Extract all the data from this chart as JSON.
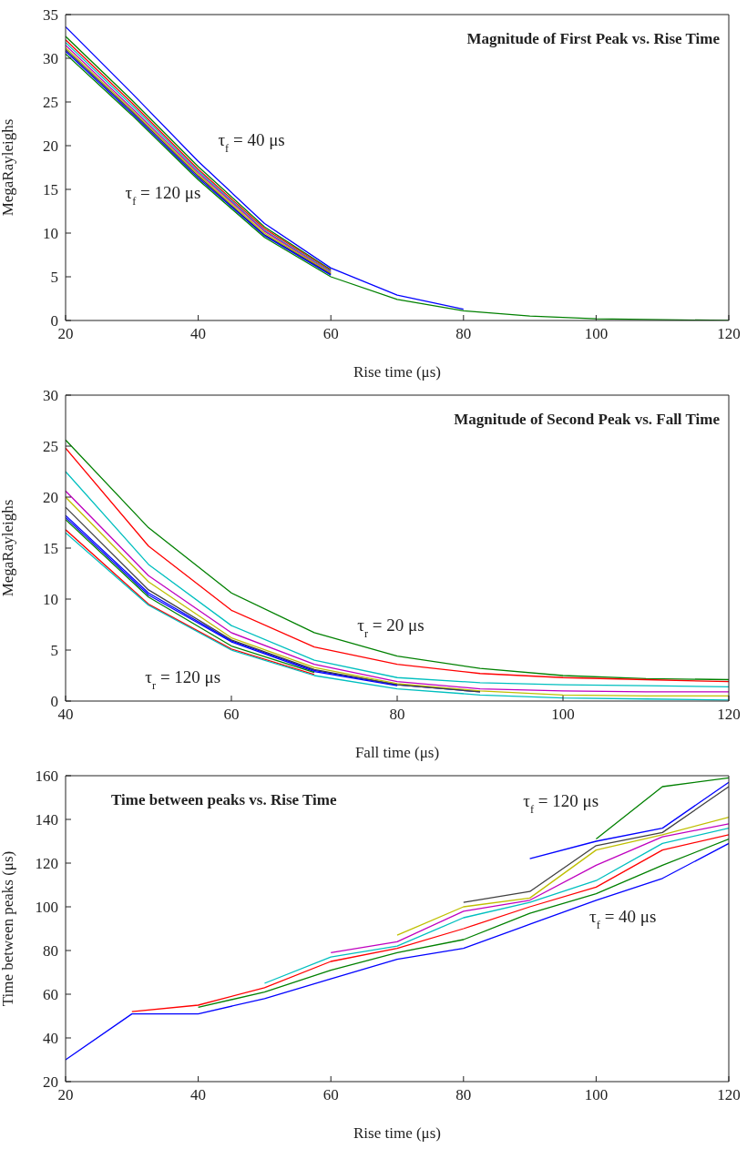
{
  "chart_data": [
    {
      "type": "line",
      "title": "Magnitude of First Peak vs. Rise Time",
      "xlabel": "Rise time (μs)",
      "ylabel": "MegaRayleighs",
      "x": [
        20,
        30,
        40,
        50,
        60,
        70,
        80,
        90,
        100,
        110,
        120
      ],
      "xlim": [
        20,
        120
      ],
      "xticks": [
        20,
        40,
        60,
        80,
        100,
        120
      ],
      "ylim": [
        0,
        35
      ],
      "yticks": [
        0,
        5,
        10,
        15,
        20,
        25,
        30,
        35
      ],
      "annotations": [
        "τ$_{f}$ = 40 μs",
        "τ$_{f}$ = 120 μs"
      ],
      "series": [
        {
          "color": "#0000ff",
          "values": [
            33.6,
            26.0,
            18.2,
            11.1,
            6.0,
            2.9,
            1.3,
            null,
            null,
            null,
            null
          ]
        },
        {
          "color": "#008000",
          "values": [
            32.5,
            25.2,
            17.6,
            10.7,
            5.8,
            null,
            null,
            null,
            null,
            null,
            null
          ]
        },
        {
          "color": "#ff0000",
          "values": [
            32.1,
            24.9,
            17.3,
            10.5,
            5.7,
            null,
            null,
            null,
            null,
            null,
            null
          ]
        },
        {
          "color": "#00bfbf",
          "values": [
            31.8,
            24.6,
            17.1,
            10.3,
            5.6,
            null,
            null,
            null,
            null,
            null,
            null
          ]
        },
        {
          "color": "#bf00bf",
          "values": [
            31.5,
            24.3,
            16.9,
            10.2,
            5.5,
            null,
            null,
            null,
            null,
            null,
            null
          ]
        },
        {
          "color": "#bfbf00",
          "values": [
            31.2,
            24.1,
            16.7,
            10.0,
            5.4,
            null,
            null,
            null,
            null,
            null,
            null
          ]
        },
        {
          "color": "#404040",
          "values": [
            31.0,
            23.9,
            16.5,
            9.8,
            5.3,
            null,
            null,
            null,
            null,
            null,
            null
          ]
        },
        {
          "color": "#0000ff",
          "values": [
            30.8,
            23.7,
            16.3,
            9.7,
            5.2,
            null,
            null,
            null,
            null,
            null,
            null
          ]
        },
        {
          "color": "#008000",
          "values": [
            30.5,
            23.5,
            16.1,
            9.5,
            5.0,
            2.4,
            1.1,
            0.5,
            0.2,
            0.1,
            0.0
          ]
        }
      ]
    },
    {
      "type": "line",
      "title": "Magnitude of Second Peak vs. Fall Time",
      "xlabel": "Fall time (μs)",
      "ylabel": "MegaRayleighs",
      "x": [
        40,
        50,
        60,
        70,
        80,
        90,
        100,
        110,
        120
      ],
      "xlim": [
        40,
        120
      ],
      "xticks": [
        40,
        60,
        80,
        100,
        120
      ],
      "ylim": [
        0,
        30
      ],
      "yticks": [
        0,
        5,
        10,
        15,
        20,
        25,
        30
      ],
      "annotations": [
        "τ$_{r}$ = 20 μs",
        "τ$_{r}$ = 120 μs"
      ],
      "series": [
        {
          "color": "#0000ff",
          "values": [
            18.2,
            10.6,
            5.9,
            3.0,
            1.6,
            0.9,
            null,
            null,
            null
          ]
        },
        {
          "color": "#008000",
          "values": [
            25.6,
            17.0,
            10.6,
            6.7,
            4.4,
            3.2,
            2.5,
            2.2,
            2.1
          ]
        },
        {
          "color": "#ff0000",
          "values": [
            24.8,
            15.2,
            8.9,
            5.3,
            3.6,
            2.7,
            2.3,
            2.1,
            1.9
          ]
        },
        {
          "color": "#00bfbf",
          "values": [
            22.5,
            13.4,
            7.4,
            4.0,
            2.3,
            1.8,
            1.6,
            1.5,
            1.4
          ]
        },
        {
          "color": "#bf00bf",
          "values": [
            20.6,
            12.3,
            6.7,
            3.6,
            1.9,
            1.2,
            1.0,
            0.9,
            0.9
          ]
        },
        {
          "color": "#bfbf00",
          "values": [
            20.0,
            11.7,
            6.2,
            3.3,
            1.7,
            1.0,
            0.6,
            0.5,
            0.5
          ]
        },
        {
          "color": "#404040",
          "values": [
            19.0,
            10.9,
            6.0,
            3.1,
            1.6,
            0.9,
            null,
            null,
            null
          ]
        },
        {
          "color": "#0000ff",
          "values": [
            18.0,
            10.4,
            5.8,
            2.9,
            1.5,
            null,
            null,
            null,
            null
          ]
        },
        {
          "color": "#008000",
          "values": [
            17.8,
            10.2,
            5.4,
            2.8,
            null,
            null,
            null,
            null,
            null
          ]
        },
        {
          "color": "#ff0000",
          "values": [
            16.8,
            9.5,
            5.1,
            2.6,
            null,
            null,
            null,
            null,
            null
          ]
        },
        {
          "color": "#00bfbf",
          "values": [
            16.5,
            9.4,
            5.0,
            2.5,
            1.2,
            0.6,
            0.3,
            0.2,
            0.1
          ]
        }
      ]
    },
    {
      "type": "line",
      "title": "Time between peaks vs. Rise Time",
      "xlabel": "Rise time (μs)",
      "ylabel": "Time between peaks (μs)",
      "xlim": [
        20,
        120
      ],
      "xticks": [
        20,
        40,
        60,
        80,
        100,
        120
      ],
      "ylim": [
        20,
        160
      ],
      "yticks": [
        20,
        40,
        60,
        80,
        100,
        120,
        140,
        160
      ],
      "annotations": [
        "τ$_{f}$ = 120 μs",
        "τ$_{f}$ = 40 μs"
      ],
      "series": [
        {
          "color": "#0000ff",
          "x": [
            20,
            30,
            40,
            50,
            60,
            70,
            80,
            90,
            100,
            110,
            120
          ],
          "values": [
            30,
            51,
            51,
            58,
            67,
            76,
            81,
            92,
            103,
            113,
            129
          ]
        },
        {
          "color": "#008000",
          "x": [
            40,
            50,
            60,
            70,
            80,
            90,
            100,
            110,
            120
          ],
          "values": [
            54,
            61,
            71,
            79,
            85,
            97,
            106,
            119,
            131
          ]
        },
        {
          "color": "#ff0000",
          "x": [
            30,
            40,
            50,
            60,
            70,
            80,
            90,
            100,
            110,
            120
          ],
          "values": [
            52,
            55,
            63,
            75,
            81,
            90,
            100,
            109,
            126,
            133
          ]
        },
        {
          "color": "#00bfbf",
          "x": [
            50,
            60,
            70,
            80,
            90,
            100,
            110,
            120
          ],
          "values": [
            65,
            77,
            82,
            95,
            102,
            112,
            129,
            136
          ]
        },
        {
          "color": "#bf00bf",
          "x": [
            60,
            70,
            80,
            90,
            100,
            110,
            120
          ],
          "values": [
            79,
            84,
            98,
            103,
            119,
            132,
            138
          ]
        },
        {
          "color": "#bfbf00",
          "x": [
            70,
            80,
            90,
            100,
            110,
            120
          ],
          "values": [
            87,
            100,
            104,
            126,
            133,
            141
          ]
        },
        {
          "color": "#404040",
          "x": [
            80,
            90,
            100,
            110,
            120
          ],
          "values": [
            102,
            107,
            128,
            134,
            155
          ]
        },
        {
          "color": "#0000ff",
          "x": [
            90,
            100,
            110,
            120
          ],
          "values": [
            122,
            130,
            136,
            157
          ]
        },
        {
          "color": "#008000",
          "x": [
            100,
            110,
            120
          ],
          "values": [
            131,
            155,
            159
          ]
        }
      ]
    }
  ]
}
